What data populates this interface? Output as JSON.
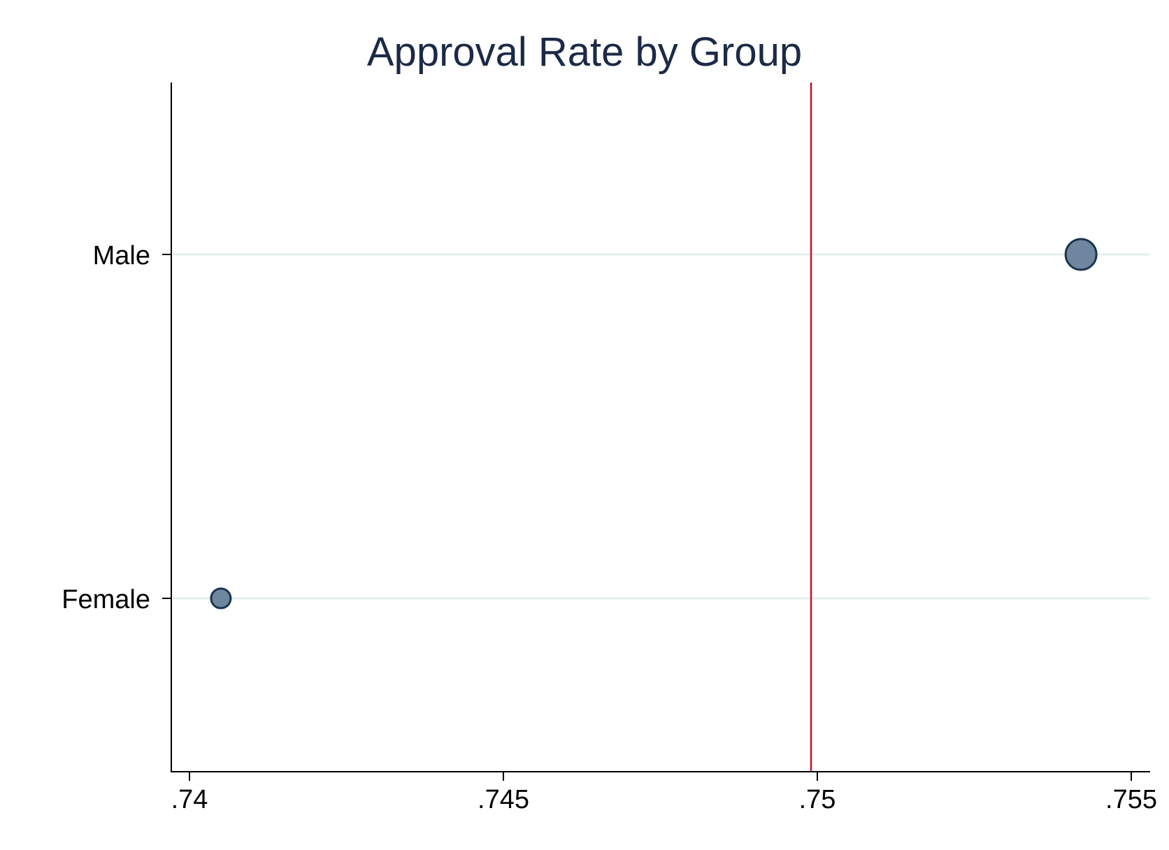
{
  "chart_data": {
    "type": "scatter",
    "title": "Approval Rate by Group",
    "xlabel": "",
    "ylabel": "",
    "xlim": [
      0.7397,
      0.7553
    ],
    "x_ticks": [
      {
        "value": 0.74,
        "label": ".74"
      },
      {
        "value": 0.745,
        "label": ".745"
      },
      {
        "value": 0.75,
        "label": ".75"
      },
      {
        "value": 0.755,
        "label": ".755"
      }
    ],
    "categories": [
      "Male",
      "Female"
    ],
    "points": [
      {
        "category": "Male",
        "value": 0.7542,
        "marker": "large"
      },
      {
        "category": "Female",
        "value": 0.7405,
        "marker": "small"
      }
    ],
    "reference_line": {
      "value": 0.7499,
      "color": "#c8102e"
    },
    "grid": "horizontal",
    "legend": "none",
    "colors": {
      "marker_fill": "#6f879e",
      "marker_stroke": "#1b3550",
      "gridline": "#e6eef0",
      "axis": "#000000",
      "title": "#1b2a47"
    }
  }
}
